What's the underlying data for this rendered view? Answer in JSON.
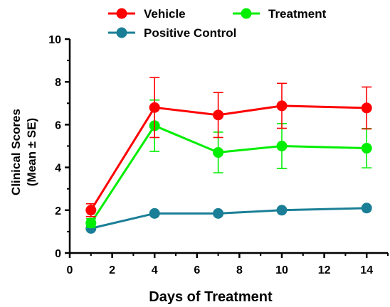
{
  "chart_data": {
    "type": "line",
    "title": "",
    "xlabel": "Days of Treatment",
    "ylabel": [
      "Clinical Scores",
      "(Mean ± SE)"
    ],
    "xlim": [
      0,
      15
    ],
    "ylim": [
      0,
      10
    ],
    "x_ticks": [
      0,
      2,
      4,
      6,
      8,
      10,
      12,
      14
    ],
    "y_ticks": [
      0,
      2,
      4,
      6,
      8,
      10
    ],
    "x": [
      1,
      4,
      7,
      10,
      14
    ],
    "series": [
      {
        "name": "Vehicle",
        "color": "#ff0000",
        "values": [
          2.0,
          6.8,
          6.45,
          6.88,
          6.78
        ],
        "errors": [
          0.3,
          1.4,
          1.05,
          1.05,
          0.98
        ]
      },
      {
        "name": "Treatment",
        "color": "#00ee00",
        "values": [
          1.4,
          5.95,
          4.7,
          5.0,
          4.9
        ],
        "errors": [
          0.2,
          1.2,
          0.95,
          1.05,
          0.92
        ]
      },
      {
        "name": "Positive Control",
        "color": "#1a7f96",
        "values": [
          1.15,
          1.85,
          1.85,
          2.0,
          2.1
        ],
        "errors": [
          0.05,
          0.05,
          0.05,
          0.05,
          0.05
        ]
      }
    ],
    "grid": false,
    "legend_position": "top"
  }
}
